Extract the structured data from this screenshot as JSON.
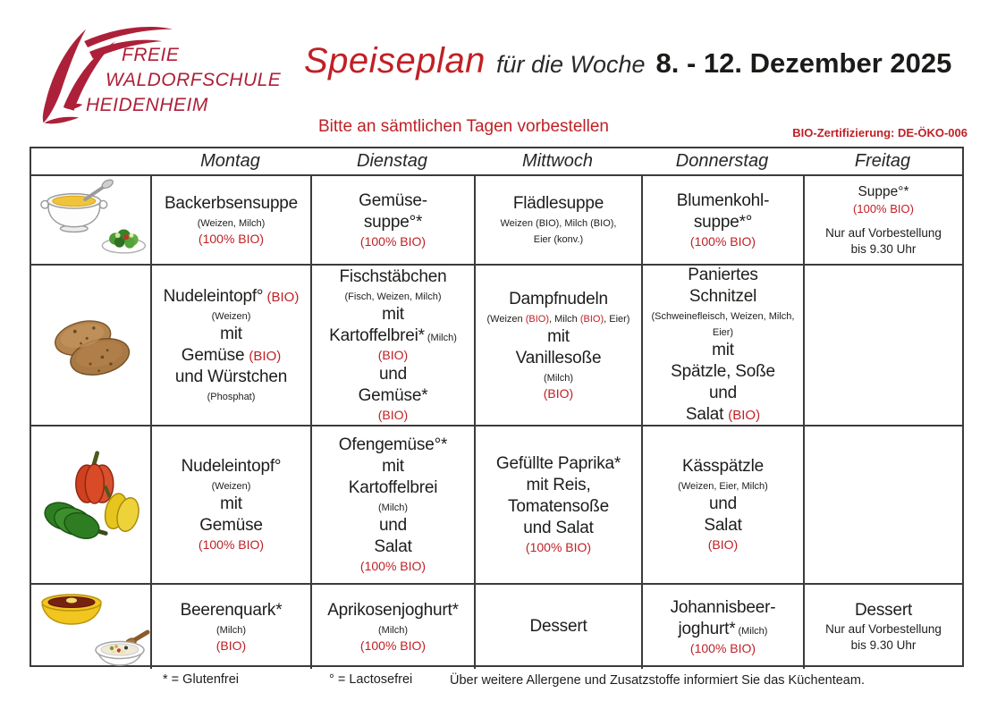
{
  "logo": {
    "lines": [
      "FREIE",
      "WALDORFSCHULE",
      "HEIDENHEIM"
    ]
  },
  "header": {
    "title_main": "Speiseplan",
    "title_mid": "für die Woche",
    "title_date": "8. - 12. Dezember 2025",
    "subtitle": "Bitte an sämtlichen Tagen vorbestellen",
    "bio_cert": "BIO-Zertifizierung: DE-ÖKO-006"
  },
  "colors": {
    "accent_red": "#c02025",
    "logo_red": "#ad2039",
    "text_black": "#1d1d1b",
    "border": "#3b3b3b"
  },
  "table": {
    "days": [
      "Montag",
      "Dienstag",
      "Mittwoch",
      "Donnerstag",
      "Freitag"
    ],
    "row_icons": [
      "soup-and-salad-icon",
      "meat-patties-icon",
      "bell-peppers-icon",
      "dessert-bowls-icon"
    ],
    "rows": [
      {
        "cells": [
          {
            "lines": [
              {
                "parts": [
                  {
                    "t": "Backerbsensuppe",
                    "s": "dish"
                  }
                ]
              },
              {
                "parts": [
                  {
                    "t": "(Weizen, Milch)",
                    "s": "small"
                  }
                ]
              },
              {
                "parts": [
                  {
                    "t": "(100% BIO)",
                    "s": "red"
                  }
                ]
              }
            ]
          },
          {
            "lines": [
              {
                "parts": [
                  {
                    "t": "Gemüse-",
                    "s": "dish"
                  }
                ]
              },
              {
                "parts": [
                  {
                    "t": "suppe°*",
                    "s": "dish"
                  }
                ]
              },
              {
                "parts": [
                  {
                    "t": "(100% BIO)",
                    "s": "red"
                  }
                ]
              }
            ]
          },
          {
            "lines": [
              {
                "parts": [
                  {
                    "t": "Flädlesuppe",
                    "s": "dish"
                  }
                ]
              },
              {
                "parts": [
                  {
                    "t": "Weizen (BIO), Milch (BIO),",
                    "s": "small"
                  }
                ]
              },
              {
                "parts": [
                  {
                    "t": "Eier (konv.)",
                    "s": "small"
                  }
                ]
              }
            ]
          },
          {
            "lines": [
              {
                "parts": [
                  {
                    "t": "Blumenkohl-",
                    "s": "dish"
                  }
                ]
              },
              {
                "parts": [
                  {
                    "t": "suppe*°",
                    "s": "dish"
                  }
                ]
              },
              {
                "parts": [
                  {
                    "t": "(100% BIO)",
                    "s": "red"
                  }
                ]
              }
            ]
          },
          {
            "lines": [
              {
                "parts": [
                  {
                    "t": "Suppe°*",
                    "s": "dish2"
                  }
                ]
              },
              {
                "parts": [
                  {
                    "t": "(100% BIO)",
                    "s": "red2"
                  }
                ]
              },
              {
                "gap": true,
                "parts": [
                  {
                    "t": "Nur auf Vorbestellung",
                    "s": "note"
                  }
                ]
              },
              {
                "parts": [
                  {
                    "t": "bis 9.30 Uhr",
                    "s": "note"
                  }
                ]
              }
            ]
          }
        ]
      },
      {
        "cells": [
          {
            "lines": [
              {
                "parts": [
                  {
                    "t": "Nudeleintopf°",
                    "s": "dish"
                  },
                  {
                    "t": " (BIO)",
                    "s": "redin"
                  }
                ]
              },
              {
                "parts": [
                  {
                    "t": "(Weizen)",
                    "s": "small"
                  }
                ]
              },
              {
                "parts": [
                  {
                    "t": "mit",
                    "s": "dish"
                  }
                ]
              },
              {
                "parts": [
                  {
                    "t": "Gemüse ",
                    "s": "dish"
                  },
                  {
                    "t": "(BIO)",
                    "s": "redin"
                  }
                ]
              },
              {
                "parts": [
                  {
                    "t": "und Würstchen",
                    "s": "dish"
                  }
                ]
              },
              {
                "parts": [
                  {
                    "t": "(Phosphat)",
                    "s": "small"
                  }
                ]
              }
            ]
          },
          {
            "lines": [
              {
                "parts": [
                  {
                    "t": "Fischstäbchen",
                    "s": "dish"
                  }
                ]
              },
              {
                "parts": [
                  {
                    "t": "(Fisch, Weizen, Milch)",
                    "s": "small"
                  }
                ]
              },
              {
                "parts": [
                  {
                    "t": "mit",
                    "s": "dish"
                  }
                ]
              },
              {
                "parts": [
                  {
                    "t": "Kartoffelbrei*",
                    "s": "dish"
                  },
                  {
                    "t": " (Milch)",
                    "s": "smallin"
                  }
                ]
              },
              {
                "parts": [
                  {
                    "t": "(BIO)",
                    "s": "red"
                  }
                ]
              },
              {
                "parts": [
                  {
                    "t": "und",
                    "s": "dish"
                  }
                ]
              },
              {
                "parts": [
                  {
                    "t": "Gemüse*",
                    "s": "dish"
                  }
                ]
              },
              {
                "parts": [
                  {
                    "t": "(BIO)",
                    "s": "red"
                  }
                ]
              }
            ]
          },
          {
            "lines": [
              {
                "parts": [
                  {
                    "t": "Dampfnudeln",
                    "s": "dish"
                  }
                ]
              },
              {
                "parts": [
                  {
                    "t": "(Weizen ",
                    "s": "small"
                  },
                  {
                    "t": "(BIO)",
                    "s": "smallred"
                  },
                  {
                    "t": ", Milch ",
                    "s": "small"
                  },
                  {
                    "t": "(BIO)",
                    "s": "smallred"
                  },
                  {
                    "t": ", Eier)",
                    "s": "small"
                  }
                ]
              },
              {
                "parts": [
                  {
                    "t": "mit",
                    "s": "dish"
                  }
                ]
              },
              {
                "parts": [
                  {
                    "t": "Vanillesoße",
                    "s": "dish"
                  }
                ]
              },
              {
                "parts": [
                  {
                    "t": "(Milch)",
                    "s": "small"
                  }
                ]
              },
              {
                "parts": [
                  {
                    "t": "(BIO)",
                    "s": "red"
                  }
                ]
              }
            ]
          },
          {
            "lines": [
              {
                "parts": [
                  {
                    "t": "Paniertes",
                    "s": "dish"
                  }
                ]
              },
              {
                "parts": [
                  {
                    "t": "Schnitzel",
                    "s": "dish"
                  }
                ]
              },
              {
                "parts": [
                  {
                    "t": "(Schweinefleisch, Weizen, Milch, Eier)",
                    "s": "small"
                  }
                ]
              },
              {
                "parts": [
                  {
                    "t": "mit",
                    "s": "dish"
                  }
                ]
              },
              {
                "parts": [
                  {
                    "t": "Spätzle, Soße",
                    "s": "dish"
                  }
                ]
              },
              {
                "parts": [
                  {
                    "t": "und",
                    "s": "dish"
                  }
                ]
              },
              {
                "parts": [
                  {
                    "t": "Salat ",
                    "s": "dish"
                  },
                  {
                    "t": "(BIO)",
                    "s": "redin"
                  }
                ]
              }
            ]
          },
          {
            "lines": []
          }
        ]
      },
      {
        "cells": [
          {
            "lines": [
              {
                "parts": [
                  {
                    "t": "Nudeleintopf°",
                    "s": "dish"
                  }
                ]
              },
              {
                "parts": [
                  {
                    "t": "(Weizen)",
                    "s": "small"
                  }
                ]
              },
              {
                "parts": [
                  {
                    "t": "mit",
                    "s": "dish"
                  }
                ]
              },
              {
                "parts": [
                  {
                    "t": "Gemüse",
                    "s": "dish"
                  }
                ]
              },
              {
                "parts": [
                  {
                    "t": "(100% BIO)",
                    "s": "red"
                  }
                ]
              }
            ]
          },
          {
            "lines": [
              {
                "parts": [
                  {
                    "t": "Ofengemüse°*",
                    "s": "dish"
                  }
                ]
              },
              {
                "parts": [
                  {
                    "t": "mit",
                    "s": "dish"
                  }
                ]
              },
              {
                "parts": [
                  {
                    "t": "Kartoffelbrei",
                    "s": "dish"
                  }
                ]
              },
              {
                "parts": [
                  {
                    "t": "(Milch)",
                    "s": "small"
                  }
                ]
              },
              {
                "parts": [
                  {
                    "t": "und",
                    "s": "dish"
                  }
                ]
              },
              {
                "parts": [
                  {
                    "t": "Salat",
                    "s": "dish"
                  }
                ]
              },
              {
                "parts": [
                  {
                    "t": "(100% BIO)",
                    "s": "red"
                  }
                ]
              }
            ]
          },
          {
            "lines": [
              {
                "parts": [
                  {
                    "t": "Gefüllte Paprika*",
                    "s": "dish"
                  }
                ]
              },
              {
                "parts": [
                  {
                    "t": "mit Reis,",
                    "s": "dish"
                  }
                ]
              },
              {
                "parts": [
                  {
                    "t": "Tomatensoße",
                    "s": "dish"
                  }
                ]
              },
              {
                "parts": [
                  {
                    "t": "und Salat",
                    "s": "dish"
                  }
                ]
              },
              {
                "parts": [
                  {
                    "t": "(100% BIO)",
                    "s": "red"
                  }
                ]
              }
            ]
          },
          {
            "lines": [
              {
                "parts": [
                  {
                    "t": "Kässpätzle",
                    "s": "dish"
                  }
                ]
              },
              {
                "parts": [
                  {
                    "t": "(Weizen, Eier, Milch)",
                    "s": "small"
                  }
                ]
              },
              {
                "parts": [
                  {
                    "t": "und",
                    "s": "dish"
                  }
                ]
              },
              {
                "parts": [
                  {
                    "t": "Salat",
                    "s": "dish"
                  }
                ]
              },
              {
                "parts": [
                  {
                    "t": "(BIO)",
                    "s": "red"
                  }
                ]
              }
            ]
          },
          {
            "lines": []
          }
        ]
      },
      {
        "cells": [
          {
            "lines": [
              {
                "parts": [
                  {
                    "t": "Beerenquark*",
                    "s": "dish"
                  }
                ]
              },
              {
                "parts": [
                  {
                    "t": "(Milch)",
                    "s": "small"
                  }
                ]
              },
              {
                "parts": [
                  {
                    "t": "(BIO)",
                    "s": "red"
                  }
                ]
              }
            ]
          },
          {
            "lines": [
              {
                "parts": [
                  {
                    "t": "Aprikosenjoghurt*",
                    "s": "dish"
                  }
                ]
              },
              {
                "parts": [
                  {
                    "t": "(Milch)",
                    "s": "small"
                  }
                ]
              },
              {
                "parts": [
                  {
                    "t": "(100% BIO)",
                    "s": "red"
                  }
                ]
              }
            ]
          },
          {
            "lines": [
              {
                "parts": [
                  {
                    "t": "Dessert",
                    "s": "dish"
                  }
                ]
              }
            ]
          },
          {
            "lines": [
              {
                "parts": [
                  {
                    "t": "Johannisbeer-",
                    "s": "dish"
                  }
                ]
              },
              {
                "parts": [
                  {
                    "t": "joghurt*",
                    "s": "dish"
                  },
                  {
                    "t": " (Milch)",
                    "s": "smallin"
                  }
                ]
              },
              {
                "parts": [
                  {
                    "t": "(100% BIO)",
                    "s": "red"
                  }
                ]
              }
            ]
          },
          {
            "lines": [
              {
                "parts": [
                  {
                    "t": "Dessert",
                    "s": "dish"
                  }
                ]
              },
              {
                "parts": [
                  {
                    "t": "Nur auf Vorbestellung",
                    "s": "note"
                  }
                ]
              },
              {
                "parts": [
                  {
                    "t": "bis 9.30 Uhr",
                    "s": "note"
                  }
                ]
              }
            ]
          }
        ]
      }
    ]
  },
  "legend": {
    "gluten": "* = Glutenfrei",
    "lactose": "° = Lactosefrei",
    "allergens_note": "Über weitere Allergene und Zusatzstoffe informiert Sie das Küchenteam."
  }
}
